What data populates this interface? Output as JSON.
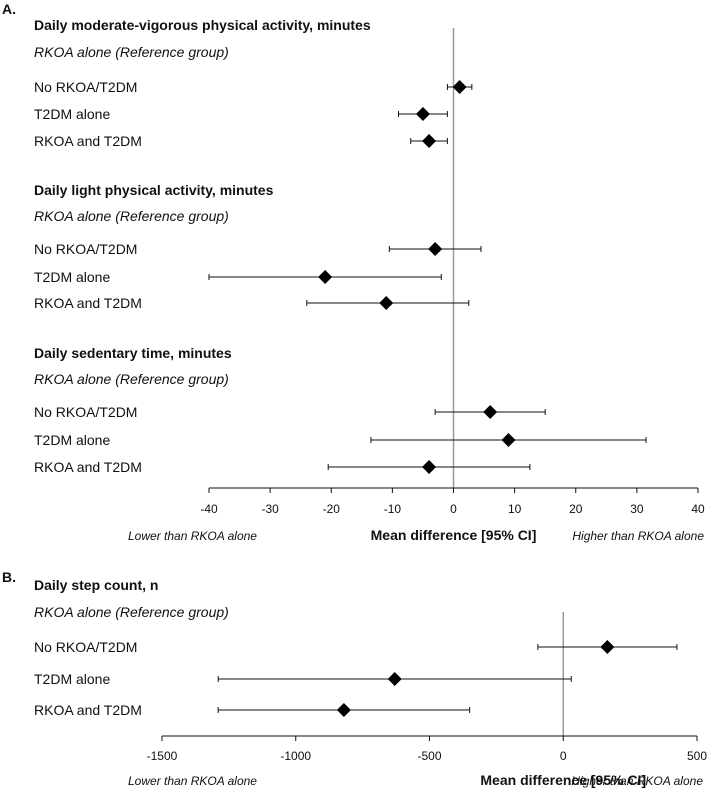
{
  "colors": {
    "ink": "#111111",
    "reference_line": "#9a9a9a",
    "marker": "#000000"
  },
  "marker_shape": "diamond",
  "chart_data": [
    {
      "panel_label": "A.",
      "type": "forest",
      "xlabel": "Mean difference [95% CI]",
      "left_annotation": "Lower than RKOA alone",
      "right_annotation": "Higher than RKOA alone",
      "xlim": [
        -40,
        40
      ],
      "ticks": [
        -40,
        -30,
        -20,
        -10,
        0,
        10,
        20,
        30,
        40
      ],
      "reference_value": 0,
      "sections": [
        {
          "title": "Daily moderate-vigorous physical activity, minutes",
          "reference_label": "RKOA alone (Reference group)",
          "rows": [
            {
              "label": "No RKOA/T2DM",
              "estimate": 1,
              "ci_low": -1,
              "ci_high": 3
            },
            {
              "label": "T2DM alone",
              "estimate": -5,
              "ci_low": -9,
              "ci_high": -1
            },
            {
              "label": "RKOA and T2DM",
              "estimate": -4,
              "ci_low": -7,
              "ci_high": -1
            }
          ]
        },
        {
          "title": "Daily light physical activity, minutes",
          "reference_label": "RKOA alone (Reference group)",
          "rows": [
            {
              "label": "No RKOA/T2DM",
              "estimate": -3,
              "ci_low": -10.5,
              "ci_high": 4.5
            },
            {
              "label": "T2DM alone",
              "estimate": -21,
              "ci_low": -40,
              "ci_high": -2
            },
            {
              "label": "RKOA and T2DM",
              "estimate": -11,
              "ci_low": -24,
              "ci_high": 2.5
            }
          ]
        },
        {
          "title": "Daily sedentary time, minutes",
          "reference_label": "RKOA alone (Reference group)",
          "rows": [
            {
              "label": "No RKOA/T2DM",
              "estimate": 6,
              "ci_low": -3,
              "ci_high": 15
            },
            {
              "label": "T2DM alone",
              "estimate": 9,
              "ci_low": -13.5,
              "ci_high": 31.5
            },
            {
              "label": "RKOA and T2DM",
              "estimate": -4,
              "ci_low": -20.5,
              "ci_high": 12.5
            }
          ]
        }
      ]
    },
    {
      "panel_label": "B.",
      "type": "forest",
      "xlabel": "Mean difference [95% CI]",
      "left_annotation": "Lower than RKOA alone",
      "right_annotation": "Higher than RKOA alone",
      "xlim": [
        -1500,
        500
      ],
      "ticks": [
        -1500,
        -1000,
        -500,
        0,
        500
      ],
      "reference_value": 0,
      "sections": [
        {
          "title": "Daily step count, n",
          "reference_label": "RKOA alone (Reference group)",
          "rows": [
            {
              "label": "No RKOA/T2DM",
              "estimate": 165,
              "ci_low": -95,
              "ci_high": 425
            },
            {
              "label": "T2DM alone",
              "estimate": -630,
              "ci_low": -1290,
              "ci_high": 30
            },
            {
              "label": "RKOA and T2DM",
              "estimate": -820,
              "ci_low": -1290,
              "ci_high": -350
            }
          ]
        }
      ]
    }
  ]
}
